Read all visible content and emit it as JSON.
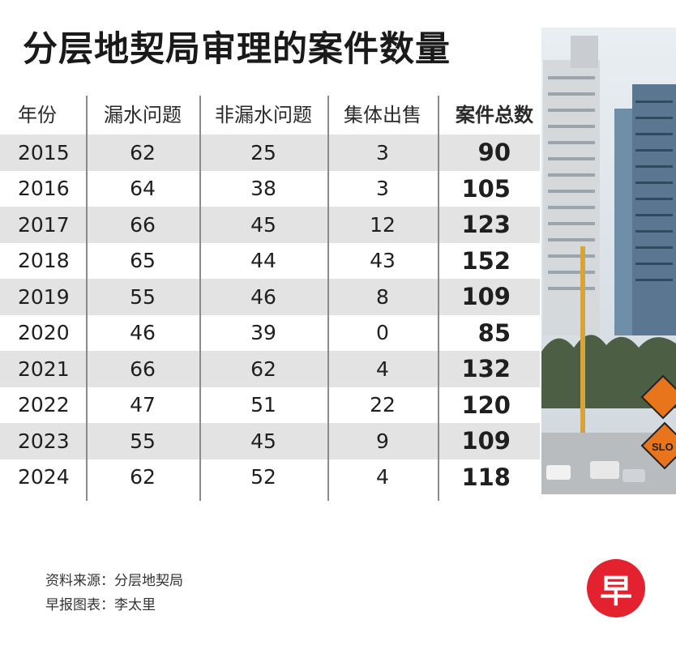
{
  "title": "分层地契局审理的案件数量",
  "chart_data": {
    "type": "table",
    "columns": [
      "年份",
      "漏水问题",
      "非漏水问题",
      "集体出售",
      "案件总数"
    ],
    "rows": [
      [
        "2015",
        "62",
        "25",
        "3",
        "90"
      ],
      [
        "2016",
        "64",
        "38",
        "3",
        "105"
      ],
      [
        "2017",
        "66",
        "45",
        "12",
        "123"
      ],
      [
        "2018",
        "65",
        "44",
        "43",
        "152"
      ],
      [
        "2019",
        "55",
        "46",
        "8",
        "109"
      ],
      [
        "2020",
        "46",
        "39",
        "0",
        "85"
      ],
      [
        "2021",
        "66",
        "62",
        "4",
        "132"
      ],
      [
        "2022",
        "47",
        "51",
        "22",
        "120"
      ],
      [
        "2023",
        "55",
        "45",
        "9",
        "109"
      ],
      [
        "2024",
        "62",
        "52",
        "4",
        "118"
      ]
    ],
    "shaded_rows": [
      0,
      2,
      4,
      6,
      8
    ]
  },
  "footer": {
    "source": "资料来源：分层地契局",
    "credit": "早报图表：李太里"
  },
  "logo": {
    "text": "早",
    "color": "#e4222f"
  },
  "photo": {
    "signs": [
      "SLO"
    ]
  }
}
